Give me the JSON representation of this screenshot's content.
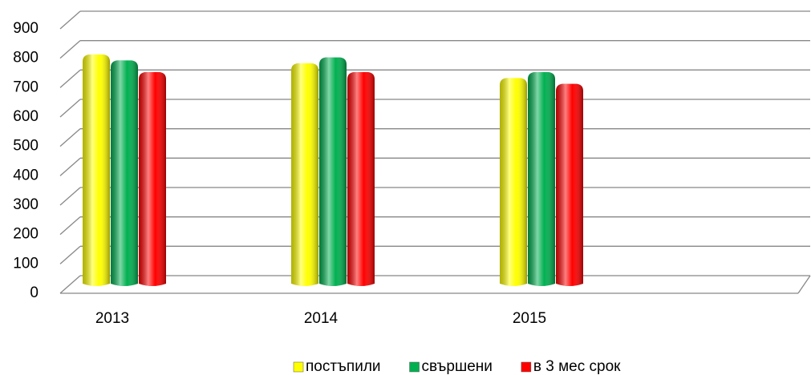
{
  "chart_data": {
    "type": "bar",
    "categories": [
      "2013",
      "2014",
      "2015"
    ],
    "series": [
      {
        "name": "постъпили",
        "color": "#ffff00",
        "values": [
          780,
          750,
          700
        ]
      },
      {
        "name": "свършени",
        "color": "#00b050",
        "values": [
          760,
          770,
          720
        ]
      },
      {
        "name": "в 3 мес срок",
        "color": "#ff0000",
        "values": [
          720,
          720,
          680
        ]
      }
    ],
    "ylim": [
      0,
      900
    ],
    "yticks": [
      0,
      100,
      200,
      300,
      400,
      500,
      600,
      700,
      800,
      900
    ],
    "grid": true
  }
}
